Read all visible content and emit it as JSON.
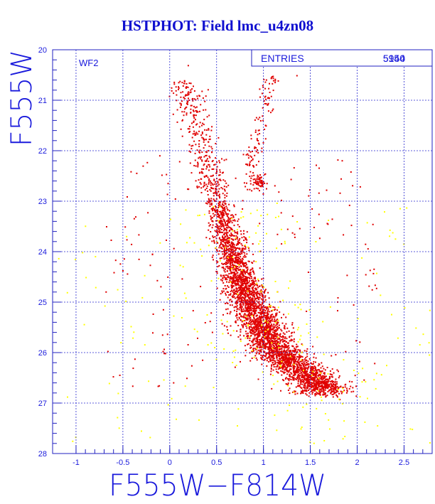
{
  "title": "HSTPHOT: Field lmc_u4zn08",
  "chart_data": {
    "type": "scatter",
    "title": "HSTPHOT: Field lmc_u4zn08",
    "xlabel": "F555W−F814W",
    "ylabel": "F555W",
    "xlim": [
      -1.25,
      2.8
    ],
    "ylim": [
      28,
      20
    ],
    "y_inverted": true,
    "xticks": [
      -1,
      -0.5,
      0,
      0.5,
      1,
      1.5,
      2,
      2.5
    ],
    "yticks": [
      20,
      21,
      22,
      23,
      24,
      25,
      26,
      27,
      28
    ],
    "grid": true,
    "chip_label": "WF2",
    "stats": {
      "entries_label": "ENTRIES",
      "entries_value": "5954",
      "entries_overlay": "5140"
    },
    "series": [
      {
        "color": "#e00000",
        "ridge": [
          [
            0.2,
            20.6
          ],
          [
            0.45,
            22.3
          ],
          [
            0.55,
            23.2
          ],
          [
            0.65,
            24.0
          ],
          [
            0.78,
            24.7
          ],
          [
            0.92,
            25.3
          ],
          [
            1.1,
            25.9
          ],
          [
            1.35,
            26.3
          ],
          [
            1.6,
            26.6
          ]
        ],
        "sample_points": [
          [
            0.06,
            20.8
          ],
          [
            0.19,
            20.3
          ],
          [
            1.0,
            21.0
          ],
          [
            1.1,
            20.6
          ],
          [
            1.35,
            20.5
          ],
          [
            0.93,
            22.6
          ],
          [
            0.55,
            23.1
          ],
          [
            0.7,
            24.2
          ],
          [
            0.9,
            25.0
          ],
          [
            1.2,
            26.1
          ],
          [
            1.45,
            26.5
          ]
        ]
      },
      {
        "color": "#ffff00",
        "sample_points": [
          [
            -1.1,
            24.8
          ],
          [
            -0.9,
            24.5
          ],
          [
            -0.4,
            25.7
          ],
          [
            -0.3,
            24.9
          ],
          [
            1.7,
            27.5
          ],
          [
            2.05,
            26.3
          ],
          [
            2.2,
            26.4
          ],
          [
            2.5,
            25.1
          ],
          [
            2.56,
            27.5
          ],
          [
            2.62,
            25.5
          ]
        ]
      }
    ]
  }
}
